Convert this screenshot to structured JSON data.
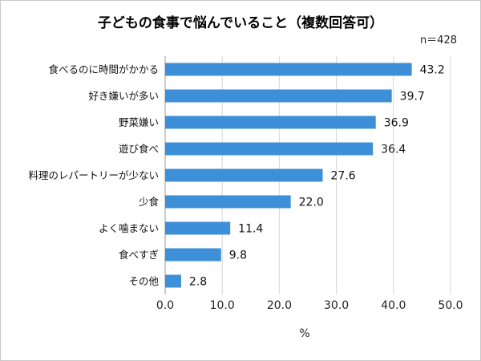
{
  "chart_data": {
    "type": "bar",
    "orientation": "horizontal",
    "title": "子どもの食事で悩んでいること（複数回答可）",
    "note": "n＝428",
    "xlabel": "%",
    "ylabel": "",
    "xlim": [
      0,
      50
    ],
    "xticks": [
      "0.0",
      "10.0",
      "20.0",
      "30.0",
      "40.0",
      "50.0"
    ],
    "grid": "vertical",
    "bar_color": "#3d8fd8",
    "categories": [
      "食べるのに時間がかかる",
      "好き嫌いが多い",
      "野菜嫌い",
      "遊び食べ",
      "料理のレパートリーが少ない",
      "少食",
      "よく噛まない",
      "食べすぎ",
      "その他"
    ],
    "values": [
      43.2,
      39.7,
      36.9,
      36.4,
      27.6,
      22.0,
      11.4,
      9.8,
      2.8
    ],
    "value_labels": [
      "43.2",
      "39.7",
      "36.9",
      "36.4",
      "27.6",
      "22.0",
      "11.4",
      "9.8",
      "2.8"
    ]
  }
}
